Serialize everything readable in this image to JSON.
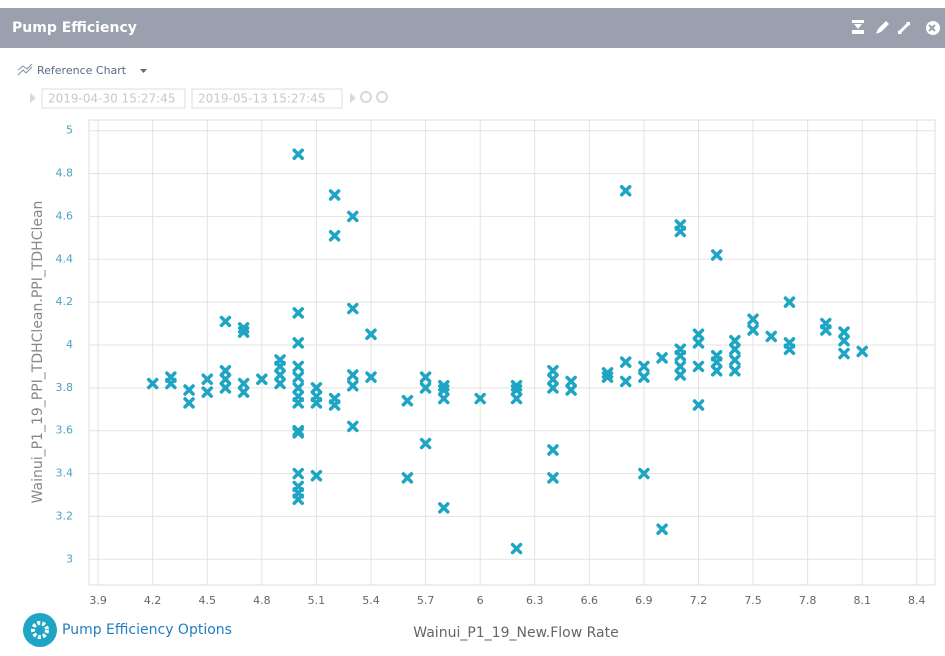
{
  "panel": {
    "title": "Pump Efficiency",
    "reference_chart": "Reference Chart",
    "date_from": "2019-04-30 15:27:45",
    "date_to": "2019-05-13 15:27:45",
    "options_label": "Pump Efficiency Options"
  },
  "chart_data": {
    "type": "scatter",
    "color": "#1ea5c4",
    "grid": true,
    "x_label": "Wainui_P1_19_New.Flow Rate",
    "y_label": "Wainui_P1_19_PPI_TDHClean.PPI_TDHClean",
    "xlim": [
      3.85,
      8.5
    ],
    "ylim": [
      2.88,
      5.05
    ],
    "xticks": [
      3.9,
      4.2,
      4.5,
      4.8,
      5.1,
      5.4,
      5.7,
      6,
      6.3,
      6.6,
      6.9,
      7.2,
      7.5,
      7.8,
      8.1,
      8.4
    ],
    "yticks": [
      3,
      3.2,
      3.4,
      3.6,
      3.8,
      4,
      4.2,
      4.4,
      4.6,
      4.8,
      5
    ],
    "x": [
      4.2,
      4.3,
      4.3,
      4.4,
      4.4,
      4.5,
      4.5,
      4.6,
      4.6,
      4.6,
      4.6,
      4.7,
      4.7,
      4.7,
      4.7,
      4.8,
      4.9,
      4.9,
      4.9,
      4.9,
      5.0,
      5.0,
      5.0,
      5.0,
      5.0,
      5.0,
      5.0,
      5.0,
      5.0,
      5.0,
      5.0,
      5.0,
      5.0,
      5.0,
      5.1,
      5.1,
      5.1,
      5.1,
      5.2,
      5.2,
      5.2,
      5.2,
      5.3,
      5.3,
      5.3,
      5.3,
      5.3,
      5.4,
      5.4,
      5.6,
      5.6,
      5.7,
      5.7,
      5.7,
      5.8,
      5.8,
      5.8,
      5.8,
      6.0,
      6.2,
      6.2,
      6.2,
      6.2,
      6.4,
      6.4,
      6.4,
      6.4,
      6.4,
      6.5,
      6.5,
      6.7,
      6.7,
      6.8,
      6.8,
      6.8,
      6.9,
      6.9,
      6.9,
      7.0,
      7.0,
      7.1,
      7.1,
      7.1,
      7.1,
      7.1,
      7.1,
      7.2,
      7.2,
      7.2,
      7.2,
      7.3,
      7.3,
      7.3,
      7.3,
      7.4,
      7.4,
      7.4,
      7.4,
      7.5,
      7.5,
      7.6,
      7.7,
      7.7,
      7.7,
      7.9,
      7.9,
      8.0,
      8.0,
      8.0,
      8.1
    ],
    "y": [
      3.82,
      3.82,
      3.85,
      3.73,
      3.79,
      3.78,
      3.84,
      3.8,
      3.84,
      3.88,
      4.11,
      3.78,
      3.82,
      4.06,
      4.08,
      3.84,
      3.82,
      3.86,
      3.9,
      3.93,
      4.89,
      4.15,
      4.01,
      3.9,
      3.85,
      3.8,
      3.76,
      3.73,
      3.6,
      3.59,
      3.4,
      3.34,
      3.31,
      3.28,
      3.39,
      3.73,
      3.76,
      3.8,
      4.7,
      4.51,
      3.72,
      3.75,
      4.6,
      4.17,
      3.86,
      3.81,
      3.62,
      4.05,
      3.85,
      3.38,
      3.74,
      3.54,
      3.8,
      3.85,
      3.24,
      3.75,
      3.79,
      3.81,
      3.75,
      3.05,
      3.75,
      3.79,
      3.81,
      3.51,
      3.38,
      3.8,
      3.84,
      3.88,
      3.79,
      3.83,
      3.85,
      3.87,
      4.72,
      3.83,
      3.92,
      3.4,
      3.85,
      3.9,
      3.14,
      3.94,
      4.56,
      4.53,
      3.86,
      3.9,
      3.95,
      3.98,
      3.72,
      3.9,
      4.01,
      4.05,
      4.42,
      3.88,
      3.92,
      3.95,
      3.88,
      3.93,
      3.98,
      4.02,
      4.07,
      4.12,
      4.04,
      3.98,
      4.01,
      4.2,
      4.07,
      4.1,
      3.96,
      4.02,
      4.06,
      3.97
    ]
  }
}
